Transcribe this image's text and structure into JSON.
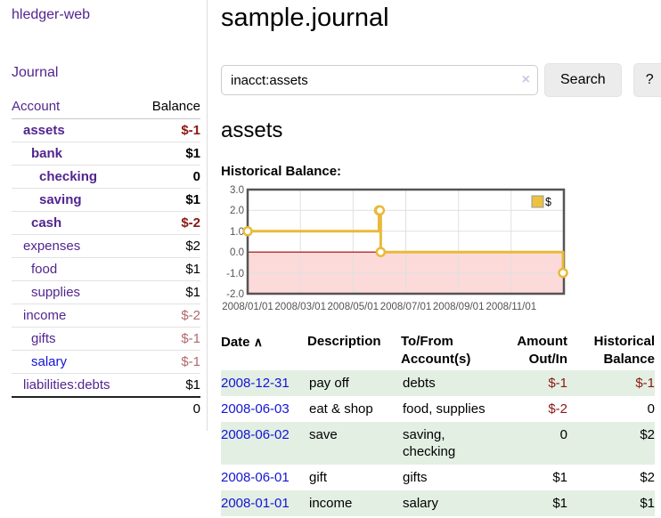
{
  "app": {
    "title": "hledger-web"
  },
  "nav": {
    "journal": "Journal"
  },
  "sidebar": {
    "headers": {
      "account": "Account",
      "balance": "Balance"
    },
    "accounts": [
      {
        "name": "assets",
        "depth": 1,
        "balance": "$-1",
        "bold": true,
        "negative": true,
        "link_color": "purple"
      },
      {
        "name": "bank",
        "depth": 2,
        "balance": "$1",
        "bold": true,
        "negative": false,
        "link_color": "purple"
      },
      {
        "name": "checking",
        "depth": 3,
        "balance": "0",
        "bold": true,
        "negative": false,
        "link_color": "purple"
      },
      {
        "name": "saving",
        "depth": 3,
        "balance": "$1",
        "bold": true,
        "negative": false,
        "link_color": "purple"
      },
      {
        "name": "cash",
        "depth": 2,
        "balance": "$-2",
        "bold": true,
        "negative": true,
        "link_color": "purple"
      },
      {
        "name": "expenses",
        "depth": 1,
        "balance": "$2",
        "bold": false,
        "negative": false,
        "link_color": "purple"
      },
      {
        "name": "food",
        "depth": 2,
        "balance": "$1",
        "bold": false,
        "negative": false,
        "link_color": "purple"
      },
      {
        "name": "supplies",
        "depth": 2,
        "balance": "$1",
        "bold": false,
        "negative": false,
        "link_color": "purple"
      },
      {
        "name": "income",
        "depth": 1,
        "balance": "$-2",
        "bold": false,
        "negative": true,
        "link_color": "purple"
      },
      {
        "name": "gifts",
        "depth": 2,
        "balance": "$-1",
        "bold": false,
        "negative": true,
        "link_color": "purple"
      },
      {
        "name": "salary",
        "depth": 2,
        "balance": "$-1",
        "bold": false,
        "negative": true,
        "link_color": "blue"
      },
      {
        "name": "liabilities:debts",
        "depth": 1,
        "balance": "$1",
        "bold": false,
        "negative": false,
        "link_color": "purple"
      }
    ],
    "total": "0"
  },
  "main": {
    "title": "sample.journal"
  },
  "search": {
    "value": "inacct:assets",
    "clear_icon": "×",
    "search_button": "Search",
    "help_button": "?"
  },
  "account": {
    "heading": "assets",
    "section_label": "Historical Balance:"
  },
  "chart_data": {
    "type": "line",
    "title": "Historical Balance",
    "series": [
      {
        "name": "$",
        "color": "#edc240",
        "steps": true,
        "x": [
          "2008-01-01",
          "2008-06-01",
          "2008-06-02",
          "2008-06-03",
          "2008-12-31"
        ],
        "values": [
          1,
          2,
          2,
          0,
          -1
        ]
      }
    ],
    "ylim": [
      -2.0,
      3.0
    ],
    "xlim": [
      "2008-01-01",
      "2009-01-01"
    ],
    "ytick_labels": [
      "3.0",
      "2.0",
      "1.0",
      "0.0",
      "-1.0",
      "-2.0"
    ],
    "xtick_labels": [
      "2008/01/01",
      "2008/03/01",
      "2008/05/01",
      "2008/07/01",
      "2008/09/01",
      "2008/11/01"
    ],
    "grid": true,
    "legend_position": "top-right",
    "negative_region_color": "#fcdada",
    "zero_line_color": "#a40000"
  },
  "register": {
    "headers": {
      "date": "Date",
      "sort_icon": "∧",
      "description": "Description",
      "tofrom_line1": "To/From",
      "tofrom_line2": "Account(s)",
      "amount_line1": "Amount",
      "amount_line2": "Out/In",
      "balance_line1": "Historical",
      "balance_line2": "Balance"
    },
    "rows": [
      {
        "date": "2008-12-31",
        "description": "pay off",
        "accounts": "debts",
        "amount": "$-1",
        "balance": "$-1"
      },
      {
        "date": "2008-06-03",
        "description": "eat & shop",
        "accounts": "food, supplies",
        "amount": "$-2",
        "balance": "0"
      },
      {
        "date": "2008-06-02",
        "description": "save",
        "accounts": "saving, checking",
        "amount": "0",
        "balance": "$2"
      },
      {
        "date": "2008-06-01",
        "description": "gift",
        "accounts": "gifts",
        "amount": "$1",
        "balance": "$2"
      },
      {
        "date": "2008-01-01",
        "description": "income",
        "accounts": "salary",
        "amount": "$1",
        "balance": "$1"
      }
    ]
  }
}
